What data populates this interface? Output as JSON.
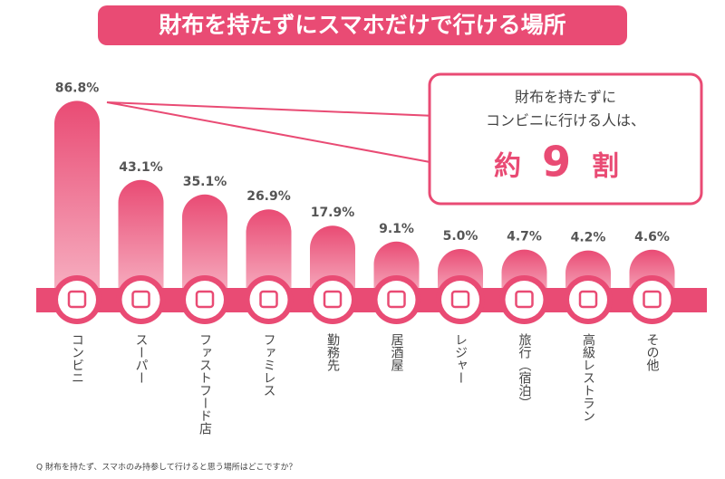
{
  "chart_data": {
    "type": "bar",
    "title": "財布を持たずにスマホだけで行ける場所",
    "categories": [
      "コンビニ",
      "スーパー",
      "ファストフード店",
      "ファミレス",
      "勤務先",
      "居酒屋",
      "レジャー",
      "旅行（宿泊）",
      "高級レストラン",
      "その他"
    ],
    "values": [
      86.8,
      43.1,
      35.1,
      26.9,
      17.9,
      9.1,
      5.0,
      4.7,
      4.2,
      4.6
    ],
    "value_labels": [
      "86.8%",
      "43.1%",
      "35.1%",
      "26.9%",
      "17.9%",
      "9.1%",
      "5.0%",
      "4.7%",
      "4.2%",
      "4.6%"
    ],
    "color": "#e94b74",
    "callout": {
      "line1": "財布を持たずに",
      "line2": "コンビニに行ける人は、",
      "prefix": "約",
      "number": "9",
      "suffix": "割"
    },
    "footnote": "Q 財布を持たず、スマホのみ持参して行けると思う場所はどこですか？"
  }
}
